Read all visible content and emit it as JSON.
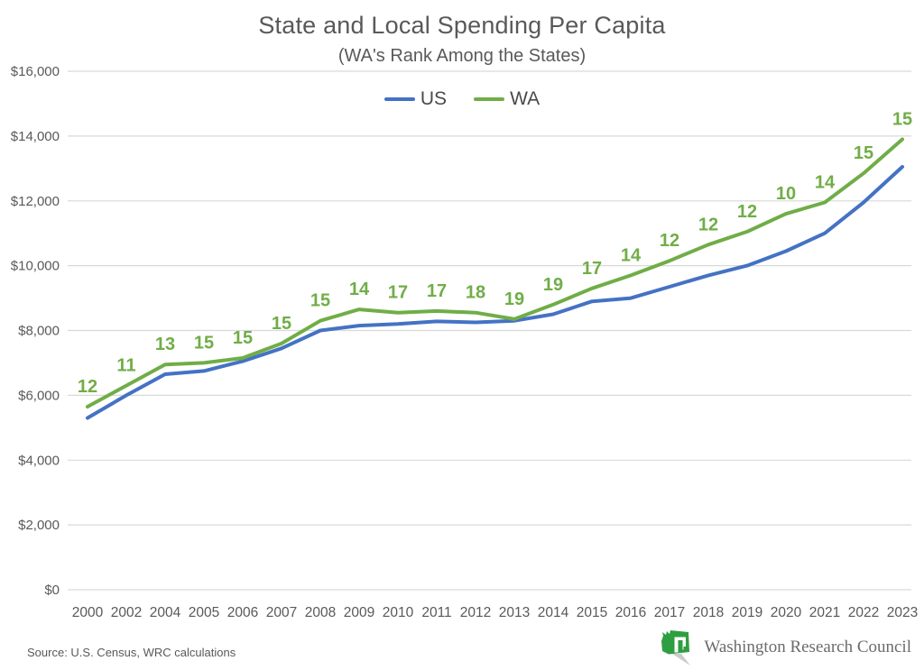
{
  "header": {
    "title": "State and Local Spending Per Capita",
    "subtitle": "(WA's Rank Among the States)"
  },
  "legend": {
    "items": [
      {
        "label": "US",
        "color": "#4472C4"
      },
      {
        "label": "WA",
        "color": "#70AD47"
      }
    ]
  },
  "chart_data": {
    "type": "line",
    "title": "State and Local Spending Per Capita",
    "subtitle": "(WA's Rank Among the States)",
    "legend_position": "top",
    "grid": true,
    "categories": [
      2000,
      2002,
      2004,
      2005,
      2006,
      2007,
      2008,
      2009,
      2010,
      2011,
      2012,
      2013,
      2014,
      2015,
      2016,
      2017,
      2018,
      2019,
      2020,
      2021,
      2022,
      2023
    ],
    "series": [
      {
        "name": "US",
        "color": "#4472C4",
        "values": [
          5300,
          6000,
          6650,
          6750,
          7050,
          7450,
          8000,
          8150,
          8200,
          8280,
          8250,
          8300,
          8500,
          8900,
          9000,
          9350,
          9700,
          10000,
          10450,
          11000,
          11950,
          13050
        ]
      },
      {
        "name": "WA",
        "color": "#70AD47",
        "values": [
          5650,
          6300,
          6950,
          7000,
          7150,
          7600,
          8300,
          8650,
          8550,
          8600,
          8550,
          8350,
          8800,
          9300,
          9700,
          10150,
          10650,
          11050,
          11600,
          11950,
          12850,
          13900
        ],
        "rank_labels": [
          12,
          11,
          13,
          15,
          15,
          15,
          15,
          14,
          17,
          17,
          18,
          19,
          19,
          17,
          14,
          12,
          12,
          12,
          10,
          14,
          15,
          15
        ]
      }
    ],
    "y_axis": {
      "min": 0,
      "max": 16000,
      "step": 2000,
      "tick_labels": [
        "$0",
        "$2,000",
        "$4,000",
        "$6,000",
        "$8,000",
        "$10,000",
        "$12,000",
        "$14,000",
        "$16,000"
      ]
    }
  },
  "footer": {
    "source": "Source: U.S. Census, WRC calculations",
    "logo_text": "Washington Research Council"
  },
  "colors": {
    "us_line": "#4472C4",
    "wa_line": "#70AD47",
    "grid": "#D9D9D9",
    "axis_text": "#595959",
    "logo_green": "#2E9E40",
    "logo_shadow": "#C9CDC9"
  }
}
